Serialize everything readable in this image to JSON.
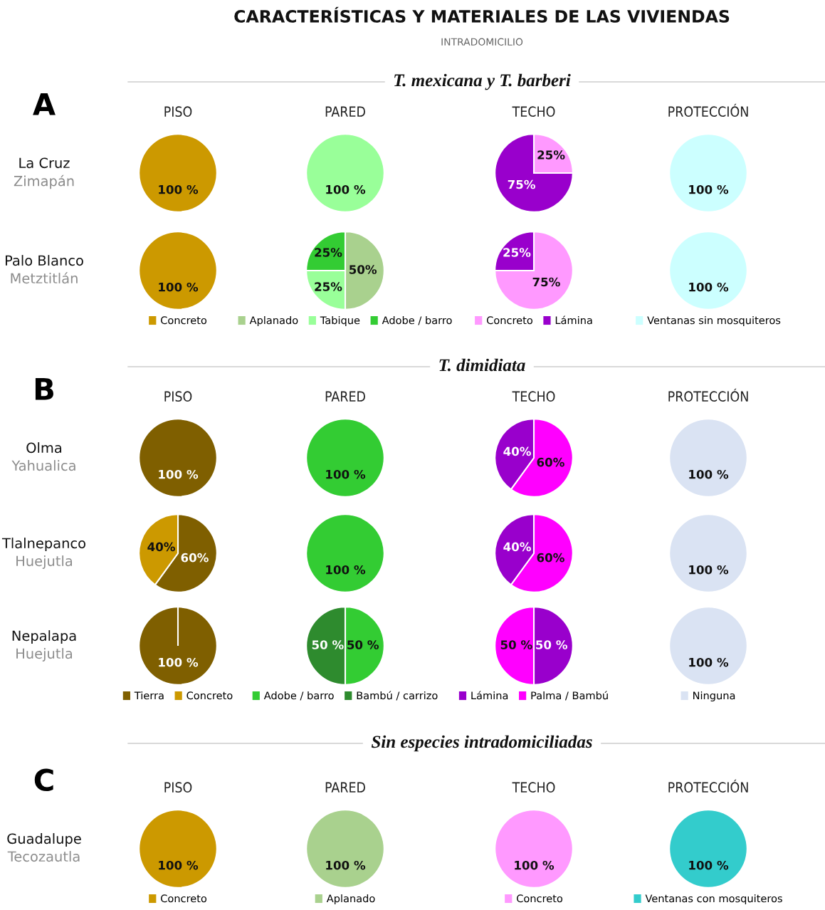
{
  "chart_data": [
    {
      "type": "pie",
      "title": "PISO",
      "ylabel": "La Cruz\nZimapán",
      "annotations": [
        "CARACTERÍSTICAS Y MATERIALES DE LAS VIVIENDAS",
        "INTRADOMICILIO",
        "A",
        "T. mexicana y T. barberi"
      ],
      "categories": [
        null
      ],
      "values": [
        100
      ],
      "colors": [
        "#cc9900"
      ],
      "value_labels": [
        "100 %"
      ]
    },
    {
      "type": "pie",
      "title": "PARED",
      "categories": [
        null
      ],
      "values": [
        100
      ],
      "colors": [
        "#99ff99"
      ],
      "value_labels": [
        "100 %"
      ]
    },
    {
      "type": "pie",
      "title": "TECHO",
      "categories": [
        null,
        null
      ],
      "values": [
        25,
        75
      ],
      "colors": [
        "#ff99ff",
        "#9900cc"
      ],
      "value_labels": [
        "25%",
        "75%"
      ]
    },
    {
      "type": "pie",
      "title": "PROTECCIÓN",
      "categories": [
        null
      ],
      "values": [
        100
      ],
      "colors": [
        "#ccffff"
      ],
      "value_labels": [
        "100 %"
      ]
    },
    {
      "type": "pie",
      "ylabel": "Palo Blanco\nMetztitlán",
      "legend": "bottom",
      "categories": [
        "Concreto"
      ],
      "values": [
        100
      ],
      "colors": [
        "#cc9900"
      ],
      "value_labels": [
        "100 %"
      ]
    },
    {
      "type": "pie",
      "legend": "bottom",
      "categories": [
        "Aplanado",
        "Tabique",
        "Adobe / barro"
      ],
      "values": [
        50,
        25,
        25
      ],
      "colors": [
        "#a9d18e",
        "#99ff99",
        "#33cc33"
      ],
      "value_labels": [
        "50%",
        "25%",
        "25%"
      ]
    },
    {
      "type": "pie",
      "legend": "bottom",
      "categories": [
        "Concreto",
        "Lámina"
      ],
      "values": [
        75,
        25
      ],
      "colors": [
        "#ff99ff",
        "#9900cc"
      ],
      "value_labels": [
        "75%",
        "25%"
      ]
    },
    {
      "type": "pie",
      "legend": "bottom",
      "categories": [
        "Ventanas sin mosquiteros"
      ],
      "values": [
        100
      ],
      "colors": [
        "#ccffff"
      ],
      "value_labels": [
        "100 %"
      ]
    },
    {
      "type": "pie",
      "title": "PISO",
      "ylabel": "Olma\nYahualica",
      "annotations": [
        "B",
        "T. dimidiata"
      ],
      "categories": [
        null
      ],
      "values": [
        100
      ],
      "colors": [
        "#7f5f00"
      ],
      "value_labels": [
        "100 %"
      ]
    },
    {
      "type": "pie",
      "title": "PARED",
      "categories": [
        null
      ],
      "values": [
        100
      ],
      "colors": [
        "#33cc33"
      ],
      "value_labels": [
        "100 %"
      ]
    },
    {
      "type": "pie",
      "title": "TECHO",
      "categories": [
        null,
        null
      ],
      "values": [
        60,
        40
      ],
      "colors": [
        "#ff00ff",
        "#9900cc"
      ],
      "value_labels": [
        "60%",
        "40%"
      ]
    },
    {
      "type": "pie",
      "title": "PROTECCIÓN",
      "categories": [
        null
      ],
      "values": [
        100
      ],
      "colors": [
        "#dae3f3"
      ],
      "value_labels": [
        "100 %"
      ]
    },
    {
      "type": "pie",
      "ylabel": "Tlalnepanco\nHuejutla",
      "categories": [
        null,
        null
      ],
      "values": [
        60,
        40
      ],
      "colors": [
        "#7f5f00",
        "#cc9900"
      ],
      "value_labels": [
        "60%",
        "40%"
      ]
    },
    {
      "type": "pie",
      "categories": [
        null
      ],
      "values": [
        100
      ],
      "colors": [
        "#33cc33"
      ],
      "value_labels": [
        "100 %"
      ]
    },
    {
      "type": "pie",
      "categories": [
        null,
        null
      ],
      "values": [
        60,
        40
      ],
      "colors": [
        "#ff00ff",
        "#9900cc"
      ],
      "value_labels": [
        "60%",
        "40%"
      ]
    },
    {
      "type": "pie",
      "categories": [
        null
      ],
      "values": [
        100
      ],
      "colors": [
        "#dae3f3"
      ],
      "value_labels": [
        "100 %"
      ]
    },
    {
      "type": "pie",
      "ylabel": "Nepalapa\nHuejutla",
      "legend": "bottom",
      "categories": [
        "Tierra",
        "Concreto"
      ],
      "values": [
        100,
        0
      ],
      "colors": [
        "#7f5f00",
        "#cc9900"
      ],
      "value_labels": [
        "100 %",
        null
      ]
    },
    {
      "type": "pie",
      "legend": "bottom",
      "categories": [
        "Adobe / barro",
        "Bambú / carrizo"
      ],
      "values": [
        50,
        50
      ],
      "colors": [
        "#33cc33",
        "#2e8b2e"
      ],
      "value_labels": [
        "50 %",
        "50 %"
      ]
    },
    {
      "type": "pie",
      "legend": "bottom",
      "categories": [
        "Lámina",
        "Palma / Bambú"
      ],
      "values": [
        50,
        50
      ],
      "colors": [
        "#9900cc",
        "#ff00ff"
      ],
      "value_labels": [
        "50 %",
        "50 %"
      ]
    },
    {
      "type": "pie",
      "legend": "bottom",
      "categories": [
        "Ninguna"
      ],
      "values": [
        100
      ],
      "colors": [
        "#dae3f3"
      ],
      "value_labels": [
        "100 %"
      ]
    },
    {
      "type": "pie",
      "title": "PISO",
      "ylabel": "Guadalupe\nTecozautla",
      "annotations": [
        "C",
        "Sin especies intradomiciliadas"
      ],
      "legend": "bottom",
      "categories": [
        "Concreto"
      ],
      "values": [
        100
      ],
      "colors": [
        "#cc9900"
      ],
      "value_labels": [
        "100 %"
      ]
    },
    {
      "type": "pie",
      "title": "PARED",
      "legend": "bottom",
      "categories": [
        "Aplanado"
      ],
      "values": [
        100
      ],
      "colors": [
        "#a9d18e"
      ],
      "value_labels": [
        "100 %"
      ]
    },
    {
      "type": "pie",
      "title": "TECHO",
      "legend": "bottom",
      "categories": [
        "Concreto"
      ],
      "values": [
        100
      ],
      "colors": [
        "#ff99ff"
      ],
      "value_labels": [
        "100 %"
      ]
    },
    {
      "type": "pie",
      "title": "PROTECCIÓN",
      "legend": "bottom",
      "categories": [
        "Ventanas con mosquiteros"
      ],
      "values": [
        100
      ],
      "colors": [
        "#33cccc"
      ],
      "value_labels": [
        "100 %"
      ]
    }
  ]
}
